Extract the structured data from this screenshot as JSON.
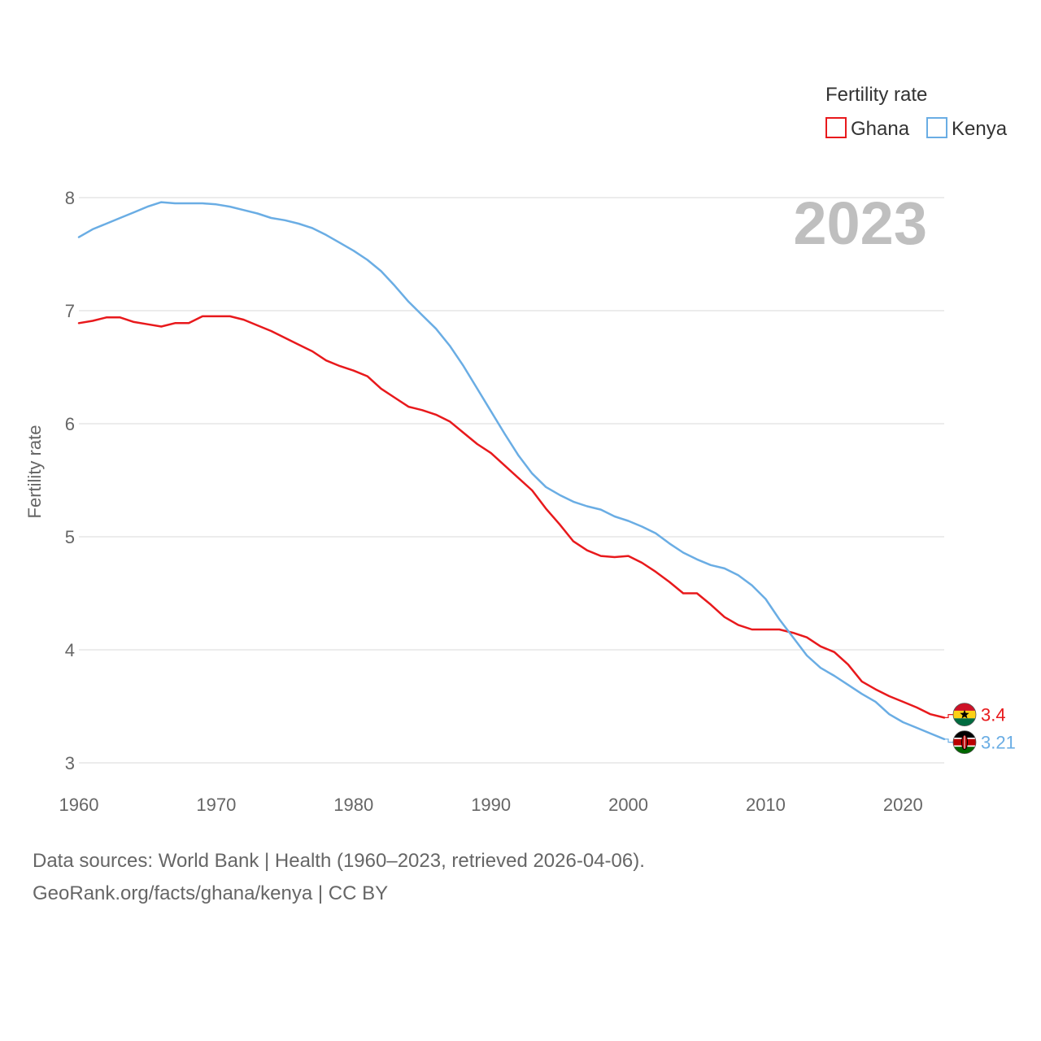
{
  "chart_data": {
    "type": "line",
    "title": "",
    "year_display": "2023",
    "xlabel": "",
    "ylabel": "Fertility rate",
    "xlim": [
      1960,
      2023
    ],
    "ylim": [
      3,
      8
    ],
    "x_ticks": [
      "1960",
      "1970",
      "1980",
      "1990",
      "2000",
      "2010",
      "2020"
    ],
    "y_ticks": [
      "3",
      "4",
      "5",
      "6",
      "7",
      "8"
    ],
    "grid": true,
    "legend": {
      "title": "Fertility rate",
      "position": "top-right"
    },
    "x": [
      1960,
      1961,
      1962,
      1963,
      1964,
      1965,
      1966,
      1967,
      1968,
      1969,
      1970,
      1971,
      1972,
      1973,
      1974,
      1975,
      1976,
      1977,
      1978,
      1979,
      1980,
      1981,
      1982,
      1983,
      1984,
      1985,
      1986,
      1987,
      1988,
      1989,
      1990,
      1991,
      1992,
      1993,
      1994,
      1995,
      1996,
      1997,
      1998,
      1999,
      2000,
      2001,
      2002,
      2003,
      2004,
      2005,
      2006,
      2007,
      2008,
      2009,
      2010,
      2011,
      2012,
      2013,
      2014,
      2015,
      2016,
      2017,
      2018,
      2019,
      2020,
      2021,
      2022,
      2023
    ],
    "series": [
      {
        "name": "Ghana",
        "color": "#e8191c",
        "end_label": "3.4",
        "flag": "ghana-flag-icon",
        "values": [
          6.89,
          6.91,
          6.94,
          6.94,
          6.9,
          6.88,
          6.86,
          6.89,
          6.89,
          6.95,
          6.95,
          6.95,
          6.92,
          6.87,
          6.82,
          6.76,
          6.7,
          6.64,
          6.56,
          6.51,
          6.47,
          6.42,
          6.31,
          6.23,
          6.15,
          6.12,
          6.08,
          6.02,
          5.92,
          5.82,
          5.74,
          5.63,
          5.52,
          5.41,
          5.25,
          5.11,
          4.96,
          4.88,
          4.83,
          4.82,
          4.83,
          4.77,
          4.69,
          4.6,
          4.5,
          4.5,
          4.4,
          4.29,
          4.22,
          4.18,
          4.18,
          4.18,
          4.15,
          4.11,
          4.03,
          3.98,
          3.87,
          3.72,
          3.65,
          3.59,
          3.54,
          3.49,
          3.43,
          3.4
        ]
      },
      {
        "name": "Kenya",
        "color": "#6aade4",
        "end_label": "3.21",
        "flag": "kenya-flag-icon",
        "values": [
          7.65,
          7.72,
          7.77,
          7.82,
          7.87,
          7.92,
          7.96,
          7.95,
          7.95,
          7.95,
          7.94,
          7.92,
          7.89,
          7.86,
          7.82,
          7.8,
          7.77,
          7.73,
          7.67,
          7.6,
          7.53,
          7.45,
          7.35,
          7.22,
          7.08,
          6.96,
          6.84,
          6.69,
          6.51,
          6.31,
          6.11,
          5.91,
          5.72,
          5.56,
          5.44,
          5.37,
          5.31,
          5.27,
          5.24,
          5.18,
          5.14,
          5.09,
          5.03,
          4.94,
          4.86,
          4.8,
          4.75,
          4.72,
          4.66,
          4.57,
          4.45,
          4.27,
          4.11,
          3.95,
          3.84,
          3.77,
          3.69,
          3.61,
          3.54,
          3.43,
          3.36,
          3.31,
          3.26,
          3.21
        ]
      }
    ]
  },
  "footer": {
    "source_line": "Data sources: World Bank | Health (1960–2023, retrieved 2026-04-06).",
    "credit_line": "GeoRank.org/facts/ghana/kenya | CC BY"
  }
}
